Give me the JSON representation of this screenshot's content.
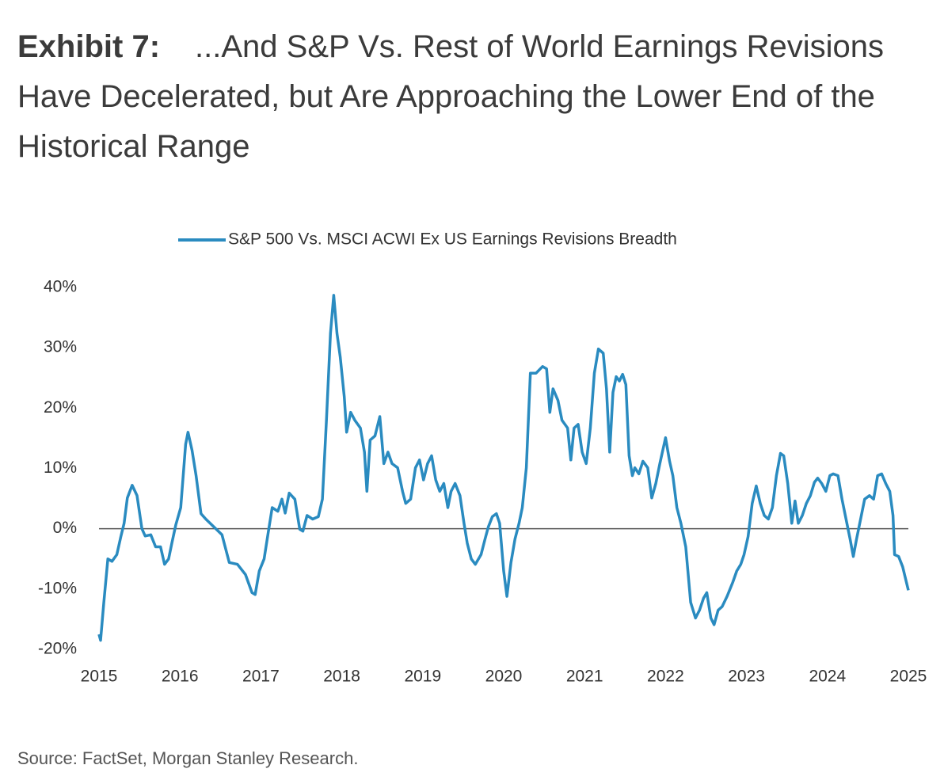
{
  "chart_data": {
    "type": "line",
    "title_lead": "Exhibit 7:",
    "title": "...And S&P Vs. Rest of World Earnings Revisions Have Decelerated, but Are Approaching the Lower End of the Historical Range",
    "source": "Source: FactSet, Morgan Stanley Research.",
    "xlim": [
      2015,
      2025
    ],
    "xticks": [
      2015,
      2016,
      2017,
      2018,
      2019,
      2020,
      2021,
      2022,
      2023,
      2024,
      2025
    ],
    "ylim": [
      -20,
      40
    ],
    "yticks": [
      {
        "value": -20,
        "label": "-20%"
      },
      {
        "value": -10,
        "label": "-10%"
      },
      {
        "value": 0,
        "label": "0%"
      },
      {
        "value": 10,
        "label": "10%"
      },
      {
        "value": 20,
        "label": "20%"
      },
      {
        "value": 30,
        "label": "30%"
      },
      {
        "value": 40,
        "label": "40%"
      }
    ],
    "grid": false,
    "legend": "top",
    "x": [
      2015.0,
      2015.02,
      2015.06,
      2015.11,
      2015.16,
      2015.22,
      2015.27,
      2015.31,
      2015.35,
      2015.41,
      2015.47,
      2015.53,
      2015.57,
      2015.64,
      2015.7,
      2015.76,
      2015.81,
      2015.86,
      2015.9,
      2015.95,
      2016.01,
      2016.07,
      2016.1,
      2016.15,
      2016.2,
      2016.26,
      2016.32,
      2016.42,
      2016.52,
      2016.61,
      2016.71,
      2016.81,
      2016.89,
      2016.93,
      2016.98,
      2017.04,
      2017.09,
      2017.14,
      2017.21,
      2017.26,
      2017.3,
      2017.35,
      2017.42,
      2017.48,
      2017.52,
      2017.57,
      2017.64,
      2017.71,
      2017.76,
      2017.81,
      2017.86,
      2017.9,
      2017.94,
      2017.98,
      2018.03,
      2018.06,
      2018.11,
      2018.16,
      2018.23,
      2018.28,
      2018.31,
      2018.35,
      2018.41,
      2018.47,
      2018.52,
      2018.57,
      2018.62,
      2018.69,
      2018.75,
      2018.79,
      2018.85,
      2018.91,
      2018.96,
      2019.01,
      2019.06,
      2019.11,
      2019.16,
      2019.21,
      2019.26,
      2019.31,
      2019.35,
      2019.4,
      2019.46,
      2019.51,
      2019.55,
      2019.6,
      2019.65,
      2019.72,
      2019.77,
      2019.81,
      2019.86,
      2019.91,
      2019.95,
      2020.0,
      2020.04,
      2020.09,
      2020.14,
      2020.19,
      2020.23,
      2020.28,
      2020.33,
      2020.4,
      2020.48,
      2020.53,
      2020.57,
      2020.61,
      2020.67,
      2020.72,
      2020.79,
      2020.83,
      2020.87,
      2020.92,
      2020.97,
      2021.02,
      2021.07,
      2021.12,
      2021.17,
      2021.23,
      2021.27,
      2021.31,
      2021.35,
      2021.39,
      2021.43,
      2021.47,
      2021.51,
      2021.55,
      2021.59,
      2021.62,
      2021.67,
      2021.72,
      2021.78,
      2021.83,
      2021.88,
      2021.93,
      2022.0,
      2022.05,
      2022.09,
      2022.14,
      2022.19,
      2022.25,
      2022.31,
      2022.37,
      2022.42,
      2022.47,
      2022.51,
      2022.56,
      2022.6,
      2022.65,
      2022.7,
      2022.76,
      2022.83,
      2022.88,
      2022.93,
      2022.97,
      2023.02,
      2023.07,
      2023.12,
      2023.17,
      2023.22,
      2023.27,
      2023.32,
      2023.37,
      2023.42,
      2023.46,
      2023.51,
      2023.56,
      2023.6,
      2023.64,
      2023.69,
      2023.74,
      2023.79,
      2023.84,
      2023.88,
      2023.93,
      2023.98,
      2024.03,
      2024.07,
      2024.13,
      2024.18,
      2024.23,
      2024.28,
      2024.32,
      2024.36,
      2024.41,
      2024.46,
      2024.52,
      2024.57,
      2024.62,
      2024.67,
      2024.72,
      2024.77,
      2024.81,
      2024.83,
      2024.88,
      2024.93,
      2025.0
    ],
    "series": [
      {
        "name": "S&P 500 Vs. MSCI ACWI Ex US Earnings Revisions Breadth",
        "color": "#2a8bc0",
        "values": [
          -17.5,
          -18.5,
          -12.2,
          -5.0,
          -5.4,
          -4.3,
          -1.3,
          0.9,
          5.1,
          7.2,
          5.5,
          0,
          -1.2,
          -1.0,
          -3.0,
          -3.0,
          -5.9,
          -5.0,
          -2.4,
          0.7,
          3.5,
          14.0,
          16.0,
          13.0,
          8.8,
          2.5,
          1.6,
          0.3,
          -1.0,
          -5.6,
          -5.9,
          -7.6,
          -10.6,
          -10.9,
          -7.0,
          -5.0,
          -0.7,
          3.5,
          2.9,
          4.9,
          2.6,
          5.9,
          4.9,
          -0.1,
          -0.4,
          2.2,
          1.6,
          2.0,
          4.9,
          18.0,
          32.4,
          38.7,
          32.4,
          28.5,
          21.9,
          16.0,
          19.3,
          18.0,
          16.7,
          12.7,
          6.2,
          14.7,
          15.4,
          18.6,
          10.8,
          12.7,
          10.8,
          10.1,
          6.2,
          4.2,
          4.9,
          10.1,
          11.4,
          8.1,
          10.8,
          12.1,
          8.1,
          6.2,
          7.5,
          3.5,
          6.2,
          7.5,
          5.5,
          0.9,
          -2.4,
          -5.0,
          -5.9,
          -4.3,
          -1.7,
          0.3,
          2.0,
          2.5,
          0.9,
          -7.0,
          -11.2,
          -5.6,
          -1.7,
          0.9,
          3.5,
          10.1,
          25.8,
          25.8,
          26.9,
          26.5,
          19.3,
          23.2,
          21.3,
          18.0,
          16.7,
          11.4,
          16.7,
          17.3,
          12.7,
          10.8,
          16.7,
          25.8,
          29.8,
          29.1,
          23.2,
          12.7,
          22.6,
          25.2,
          24.5,
          25.6,
          23.9,
          12.1,
          8.8,
          10.1,
          9.1,
          11.2,
          10.1,
          5.1,
          7.5,
          10.8,
          15.1,
          11.2,
          8.8,
          3.5,
          0.9,
          -3.0,
          -12.2,
          -14.8,
          -13.5,
          -11.5,
          -10.6,
          -14.8,
          -15.9,
          -13.5,
          -12.9,
          -11.2,
          -8.9,
          -7.0,
          -5.9,
          -4.3,
          -1.3,
          4.2,
          7.1,
          4.2,
          2.2,
          1.6,
          3.5,
          8.8,
          12.5,
          12.1,
          7.5,
          0.9,
          4.6,
          0.9,
          2.2,
          4.2,
          5.5,
          7.7,
          8.4,
          7.5,
          6.2,
          8.8,
          9.1,
          8.8,
          4.9,
          1.6,
          -1.7,
          -4.6,
          -1.7,
          1.6,
          4.9,
          5.5,
          4.9,
          8.8,
          9.1,
          7.5,
          6.2,
          2.2,
          -4.3,
          -4.6,
          -6.3,
          -10.2
        ]
      }
    ]
  }
}
